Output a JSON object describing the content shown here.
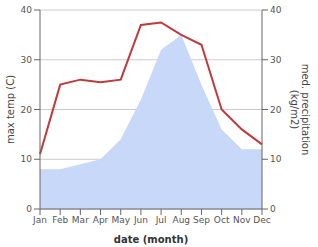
{
  "chart_data": {
    "type": "line",
    "categories": [
      "Jan",
      "Feb",
      "Mar",
      "Apr",
      "May",
      "Jun",
      "Jul",
      "Aug",
      "Sep",
      "Oct",
      "Nov",
      "Dec"
    ],
    "series": [
      {
        "type": "line",
        "color": "#c0393b",
        "values": [
          11,
          25,
          26,
          25.5,
          26,
          37,
          37.5,
          35,
          33,
          20,
          16,
          13
        ]
      },
      {
        "type": "area",
        "color": "#c8d8f8",
        "axis": "y2",
        "values": [
          8,
          8,
          9,
          10,
          14,
          22,
          32,
          35,
          25,
          16,
          12,
          12
        ]
      }
    ],
    "xlabel": "date (month)",
    "ylabel": "max temp (C)",
    "y2label": "med. precipitation\n(kg/m2)",
    "ylim": [
      0,
      40
    ],
    "yticks": [
      0,
      10,
      20,
      30,
      40
    ],
    "y2lim": [
      0,
      40
    ],
    "y2ticks": [
      0,
      10,
      20,
      30,
      40
    ],
    "grid": true
  }
}
